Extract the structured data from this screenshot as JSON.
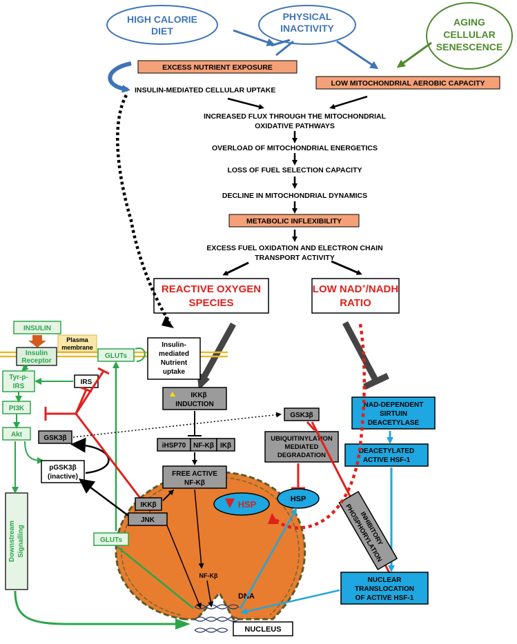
{
  "ovals": {
    "high_calorie": [
      "HIGH CALORIE",
      "DIET"
    ],
    "physical_inactivity": [
      "PHYSICAL",
      "INACTIVITY"
    ],
    "aging": [
      "AGING",
      "CELLULAR",
      "SENESCENCE"
    ]
  },
  "boxes": {
    "excess_nutrient": "EXCESS NUTRIENT EXPOSURE",
    "low_mito": "LOW MITOCHONDRIAL AEROBIC CAPACITY",
    "metabolic_inflex": "METABOLIC INFLEXIBILITY"
  },
  "steps": {
    "insulin_uptake": "INSULIN-MEDIATED CELLULAR UPTAKE",
    "flux": [
      "INCREASED FLUX THROUGH THE MITOCHONDRIAL",
      "OXIDATIVE PATHWAYS"
    ],
    "overload": "OVERLOAD OF MITOCHONDRIAL ENERGETICS",
    "fuel_loss": "LOSS OF FUEL SELECTION CAPACITY",
    "dynamics": "DECLINE IN MITOCHONDRIAL DYNAMICS",
    "fuel_oxidation": [
      "EXCESS FUEL OXIDATION AND ELECTRON CHAIN",
      "TRANSPORT ACTIVITY"
    ]
  },
  "outcomes": {
    "ros": [
      "REACTIVE OXYGEN",
      "SPECIES"
    ],
    "nad": [
      "LOW NAD",
      "+",
      "/NADH",
      "RATIO"
    ]
  },
  "insulin": {
    "insulin": "INSULIN",
    "receptor": [
      "Insulin",
      "Receptor"
    ],
    "membrane": [
      "Plasma",
      "membrane"
    ],
    "gluts": "GLUTs",
    "uptake": [
      "Insulin-",
      "mediated",
      "Nutrient",
      "uptake"
    ],
    "tyr": [
      "Tyr-p-",
      "IRS"
    ],
    "irs": "IRS",
    "pi3k": "PI3K",
    "akt": "Akt",
    "gsk": "GSK3β",
    "pgsk": [
      "pGSK3β",
      "(inactive)"
    ],
    "downstream": [
      "Downstream",
      "Signalling"
    ],
    "gluts2": "GLUTs"
  },
  "inflammation": {
    "ikk_induction": [
      "IKKβ",
      "INDUCTION"
    ],
    "ihsp70": "iHSP70",
    "nfkb_complex": "NF-Kβ",
    "ikb": "IKβ",
    "free_nfkb": [
      "FREE ACTIVE",
      "NF-Kβ"
    ],
    "ikkb": "IKKβ",
    "jnk": "JNK",
    "nfkb_nuc": "NF-Kβ"
  },
  "right": {
    "gsk": "GSK3β",
    "ubiq": [
      "UBIQUITINYLATION",
      "MEDIATED",
      "DEGRADATION"
    ],
    "sirtuin": [
      "NAD-DEPENDENT",
      "SIRTUIN",
      "DEACETYLASE"
    ],
    "deacetylated": [
      "DEACETYLATED",
      "ACTIVE HSF-1"
    ],
    "inhibitory": [
      "INHIBITORY",
      "PHOSPHORYLATION"
    ],
    "hsp_low": "HSP",
    "hsp": "HSP",
    "translocation": [
      "NUCLEAR",
      "TRANSLOCATION",
      "OF ACTIVE HSF-1"
    ]
  },
  "nucleus": {
    "dna": "DNA",
    "label": "NUCLEUS"
  },
  "colors": {
    "blue_arrow": "#3e74b8",
    "green_arrow": "#4e8a2e",
    "orange_box": "#f4a178",
    "red": "#e0201b",
    "green": "#2aa64a",
    "cyan": "#1ea7e0",
    "nucleus": "#e87c2f",
    "grey_box": "#9b9b9b"
  }
}
